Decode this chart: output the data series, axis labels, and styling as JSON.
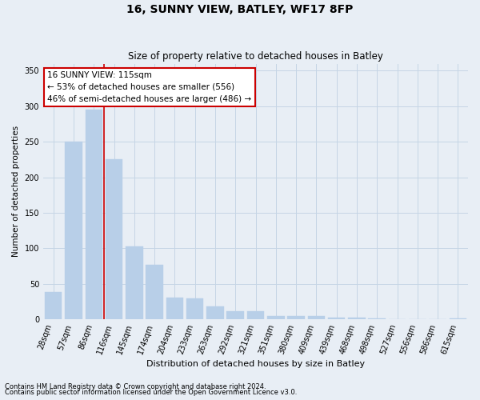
{
  "title1": "16, SUNNY VIEW, BATLEY, WF17 8FP",
  "title2": "Size of property relative to detached houses in Batley",
  "xlabel": "Distribution of detached houses by size in Batley",
  "ylabel": "Number of detached properties",
  "categories": [
    "28sqm",
    "57sqm",
    "86sqm",
    "116sqm",
    "145sqm",
    "174sqm",
    "204sqm",
    "233sqm",
    "263sqm",
    "292sqm",
    "321sqm",
    "351sqm",
    "380sqm",
    "409sqm",
    "439sqm",
    "468sqm",
    "498sqm",
    "527sqm",
    "556sqm",
    "586sqm",
    "615sqm"
  ],
  "values": [
    38,
    250,
    295,
    225,
    103,
    77,
    30,
    29,
    18,
    11,
    11,
    5,
    4,
    4,
    2,
    2,
    1,
    0,
    0,
    0,
    1
  ],
  "bar_color": "#b8cfe8",
  "bar_edge_color": "#b8cfe8",
  "grid_color": "#c5d5e5",
  "background_color": "#e8eef5",
  "annotation_box_facecolor": "#ffffff",
  "annotation_border_color": "#cc0000",
  "vertical_line_color": "#cc0000",
  "vline_bar_index": 2,
  "annotation_text1": "16 SUNNY VIEW: 115sqm",
  "annotation_text2": "← 53% of detached houses are smaller (556)",
  "annotation_text3": "46% of semi-detached houses are larger (486) →",
  "footnote1": "Contains HM Land Registry data © Crown copyright and database right 2024.",
  "footnote2": "Contains public sector information licensed under the Open Government Licence v3.0.",
  "ylim": [
    0,
    360
  ],
  "yticks": [
    0,
    50,
    100,
    150,
    200,
    250,
    300,
    350
  ],
  "title1_fontsize": 10,
  "title2_fontsize": 8.5,
  "xlabel_fontsize": 8,
  "ylabel_fontsize": 7.5,
  "tick_fontsize": 7,
  "annotation_fontsize": 7.5,
  "footnote_fontsize": 6
}
